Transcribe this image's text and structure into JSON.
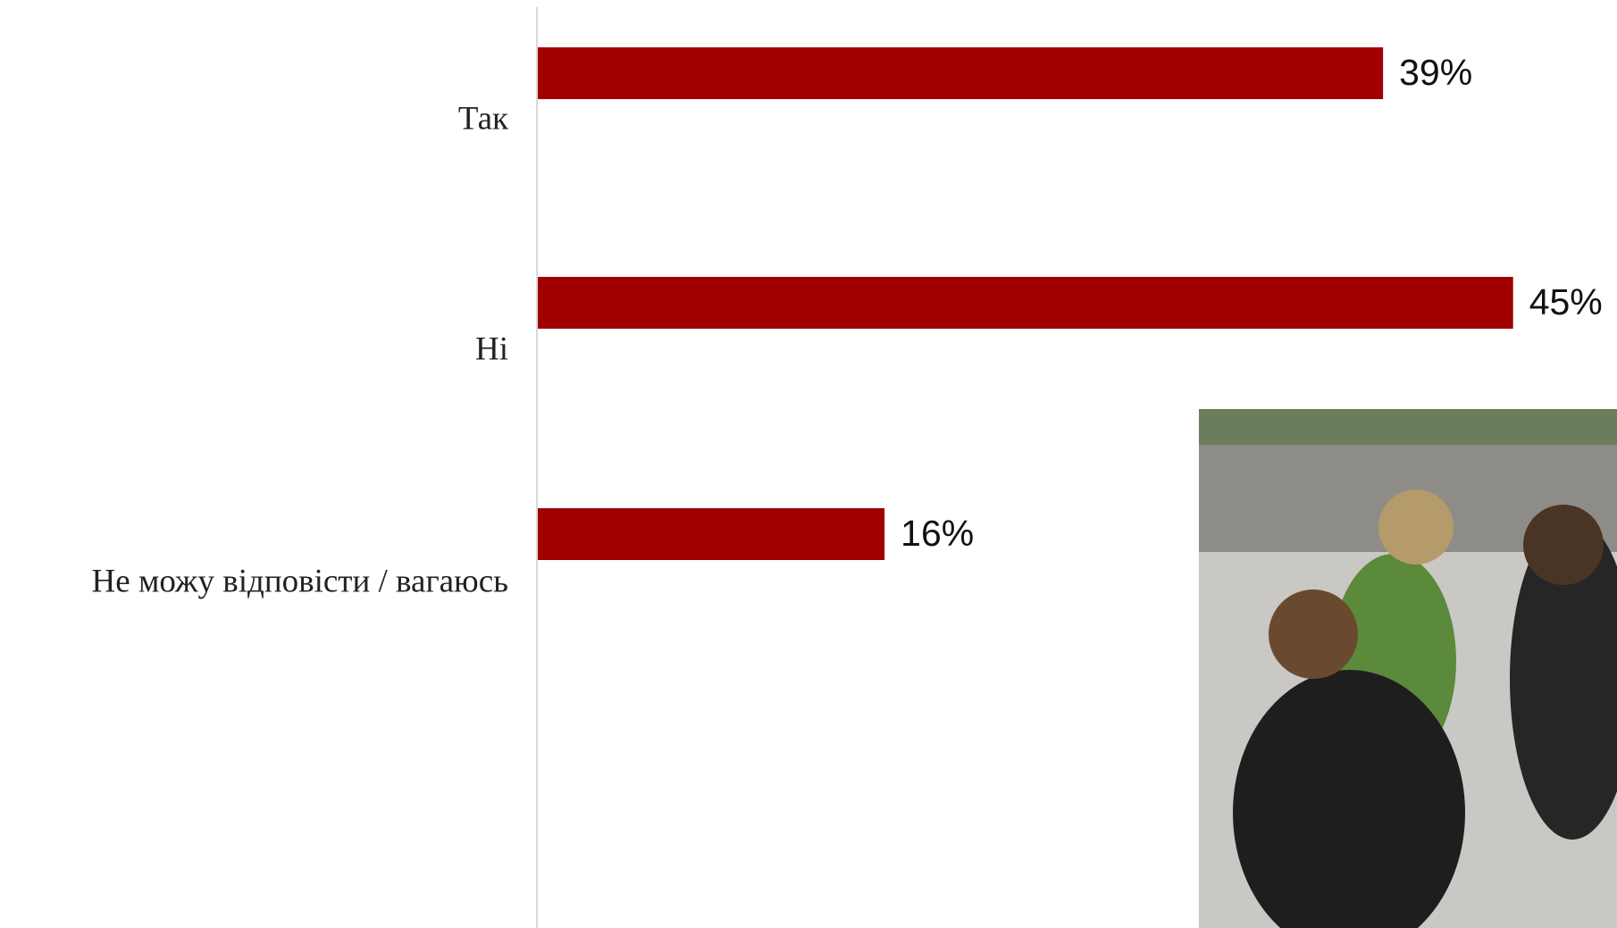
{
  "chart_data": {
    "type": "bar",
    "orientation": "horizontal",
    "categories": [
      "Так",
      "Ні",
      "Не можу відповісти / вагаюсь"
    ],
    "values": [
      39,
      45,
      16
    ],
    "value_labels": [
      "39%",
      "45%",
      "16%"
    ],
    "color": "#a00000"
  }
}
